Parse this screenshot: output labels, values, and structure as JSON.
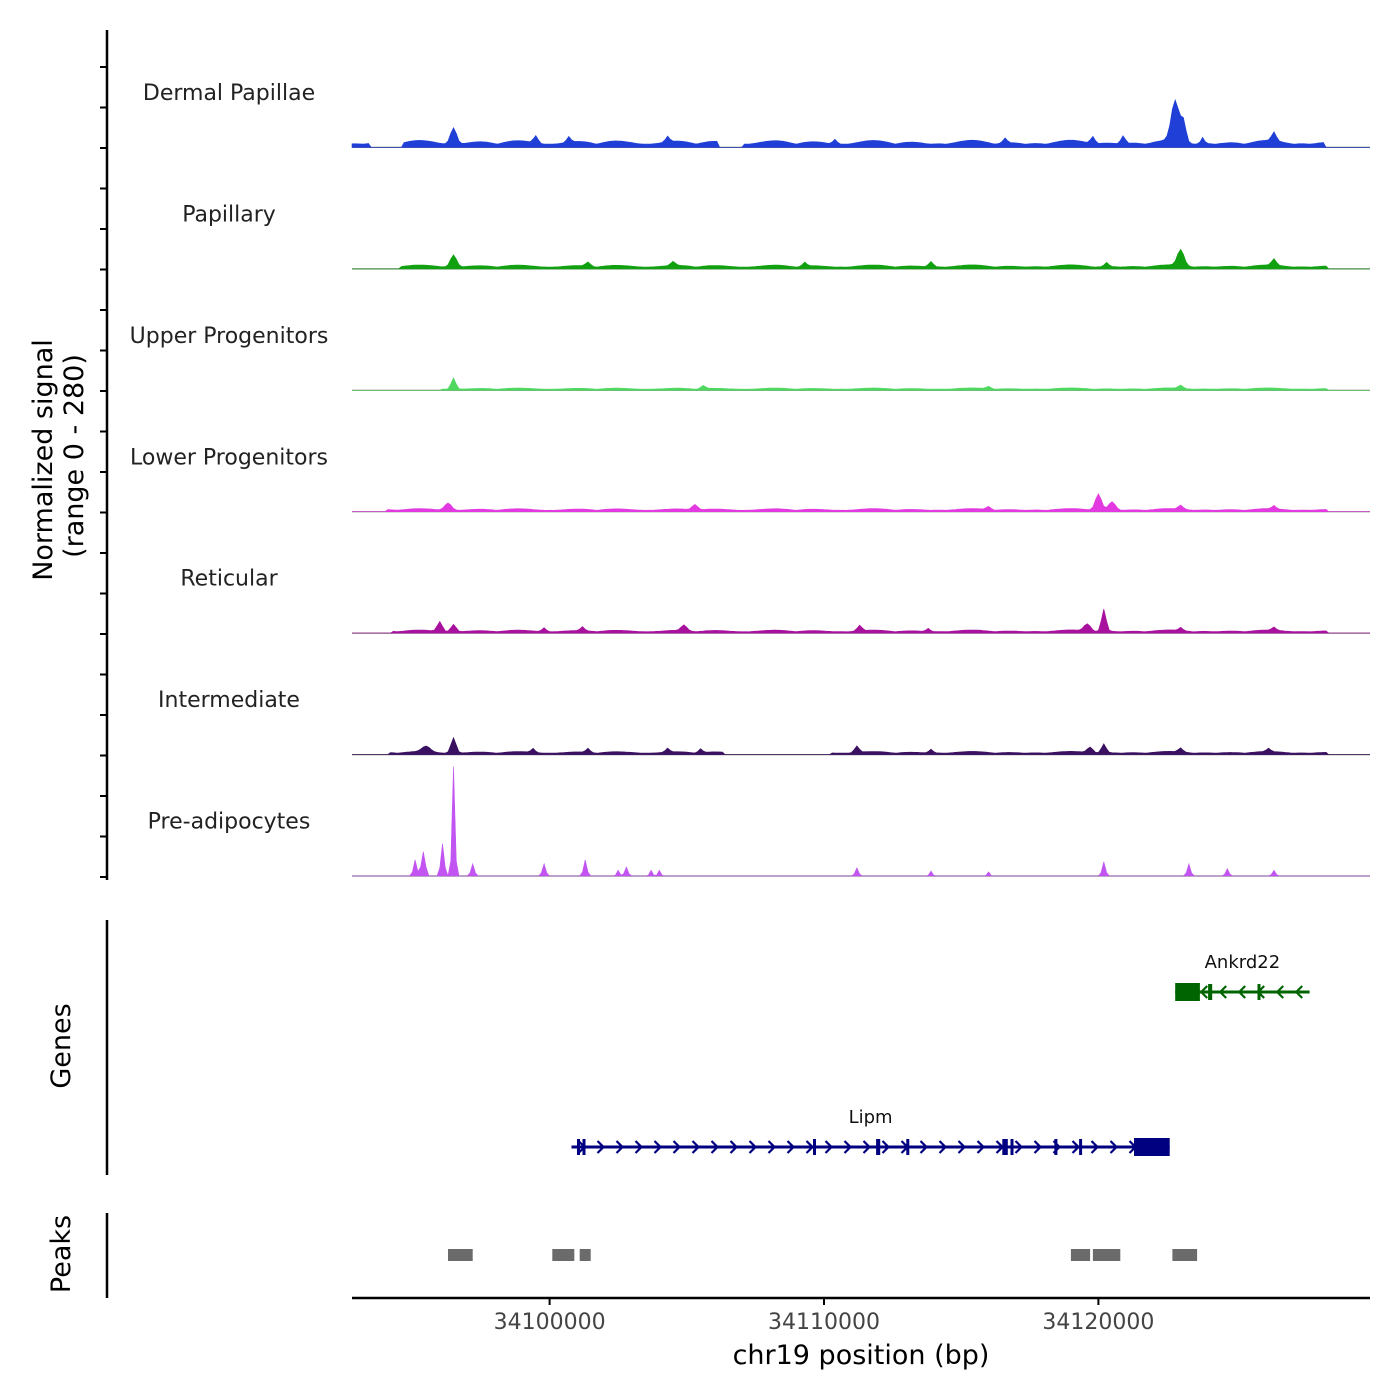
{
  "chart_data": {
    "type": "area",
    "title": "",
    "chromosome": "chr19",
    "xlabel": "chr19 position (bp)",
    "xlim": [
      34092800,
      34129900
    ],
    "x_ticks": [
      {
        "value": 34100000,
        "label": "34100000"
      },
      {
        "value": 34110000,
        "label": "34110000"
      },
      {
        "value": 34120000,
        "label": "34120000"
      }
    ],
    "coverage": {
      "ylabel_line1": "Normalized signal",
      "ylabel_line2": "(range 0 - 280)",
      "ylim": [
        0,
        280
      ],
      "bin_size_bp": 100,
      "tracks": [
        {
          "name": "Dermal Papillae",
          "color": "#1f3fd6",
          "baseline": 18,
          "peaks": [
            [
              34096500,
              40,
              110
            ],
            [
              34099500,
              18,
              80
            ],
            [
              34100700,
              14,
              70
            ],
            [
              34104300,
              14,
              70
            ],
            [
              34110400,
              12,
              70
            ],
            [
              34116600,
              12,
              70
            ],
            [
              34119800,
              18,
              80
            ],
            [
              34120900,
              20,
              80
            ],
            [
              34122800,
              100,
              140
            ],
            [
              34123100,
              50,
              90
            ],
            [
              34123800,
              15,
              60
            ],
            [
              34126400,
              22,
              80
            ]
          ],
          "gaps": [
            [
              34093500,
              34094600
            ],
            [
              34106200,
              34107000
            ],
            [
              34128300,
              34129900
            ]
          ]
        },
        {
          "name": "Papillary",
          "color": "#11a010",
          "baseline": 10,
          "peaks": [
            [
              34096500,
              30,
              110
            ],
            [
              34101400,
              10,
              80
            ],
            [
              34104500,
              10,
              80
            ],
            [
              34109300,
              10,
              70
            ],
            [
              34113900,
              14,
              80
            ],
            [
              34120300,
              10,
              70
            ],
            [
              34123000,
              40,
              120
            ],
            [
              34126400,
              16,
              80
            ]
          ],
          "gaps": [
            [
              34092800,
              34094500
            ],
            [
              34128400,
              34129900
            ]
          ]
        },
        {
          "name": "Upper Progenitors",
          "color": "#4fd860",
          "baseline": 6,
          "peaks": [
            [
              34096500,
              28,
              80
            ],
            [
              34105600,
              8,
              80
            ],
            [
              34116000,
              6,
              80
            ],
            [
              34123000,
              8,
              80
            ]
          ],
          "gaps": [
            [
              34092800,
              34096000
            ],
            [
              34128400,
              34129900
            ]
          ]
        },
        {
          "name": "Lower Progenitors",
          "color": "#e23ae0",
          "baseline": 8,
          "peaks": [
            [
              34096300,
              18,
              120
            ],
            [
              34105300,
              14,
              100
            ],
            [
              34116000,
              8,
              80
            ],
            [
              34120000,
              40,
              110
            ],
            [
              34120500,
              20,
              120
            ],
            [
              34123000,
              10,
              80
            ],
            [
              34126400,
              8,
              70
            ]
          ],
          "gaps": [
            [
              34092800,
              34094000
            ],
            [
              34128400,
              34129900
            ]
          ]
        },
        {
          "name": "Reticular",
          "color": "#a8109e",
          "baseline": 8,
          "peaks": [
            [
              34096000,
              24,
              90
            ],
            [
              34096500,
              18,
              90
            ],
            [
              34099800,
              10,
              70
            ],
            [
              34101200,
              10,
              70
            ],
            [
              34104900,
              14,
              100
            ],
            [
              34111300,
              14,
              80
            ],
            [
              34113800,
              8,
              70
            ],
            [
              34119600,
              18,
              120
            ],
            [
              34120200,
              55,
              80
            ],
            [
              34123000,
              8,
              70
            ],
            [
              34126400,
              8,
              70
            ]
          ],
          "gaps": [
            [
              34092800,
              34094200
            ],
            [
              34128400,
              34129900
            ]
          ]
        },
        {
          "name": "Intermediate",
          "color": "#3a1060",
          "baseline": 8,
          "peaks": [
            [
              34095500,
              14,
              150
            ],
            [
              34096500,
              38,
              90
            ],
            [
              34099400,
              10,
              70
            ],
            [
              34101400,
              10,
              70
            ],
            [
              34104300,
              10,
              70
            ],
            [
              34105500,
              10,
              70
            ],
            [
              34111200,
              16,
              80
            ],
            [
              34113900,
              10,
              70
            ],
            [
              34119700,
              14,
              100
            ],
            [
              34120200,
              22,
              80
            ],
            [
              34123000,
              10,
              80
            ],
            [
              34126200,
              8,
              70
            ]
          ],
          "gaps": [
            [
              34092800,
              34094100
            ],
            [
              34106400,
              34110200
            ],
            [
              34128400,
              34129900
            ]
          ]
        },
        {
          "name": "Pre-adipocytes",
          "color": "#c255f2",
          "baseline": 0,
          "peaks": [
            [
              34095100,
              40,
              60
            ],
            [
              34095400,
              60,
              70
            ],
            [
              34096100,
              80,
              60
            ],
            [
              34096500,
              270,
              50
            ],
            [
              34097200,
              30,
              60
            ],
            [
              34099800,
              30,
              60
            ],
            [
              34101300,
              40,
              60
            ],
            [
              34102500,
              14,
              50
            ],
            [
              34102800,
              22,
              60
            ],
            [
              34103700,
              14,
              50
            ],
            [
              34104000,
              14,
              50
            ],
            [
              34111200,
              20,
              60
            ],
            [
              34113900,
              12,
              50
            ],
            [
              34116000,
              10,
              50
            ],
            [
              34120200,
              35,
              60
            ],
            [
              34123300,
              30,
              60
            ],
            [
              34124700,
              18,
              60
            ],
            [
              34126400,
              14,
              60
            ]
          ],
          "gaps": []
        }
      ]
    },
    "genes": {
      "label": "Genes",
      "items": [
        {
          "name": "Ankrd22",
          "strand": "-",
          "start": 34122800,
          "end": 34127700,
          "color": "#006400",
          "exons": [
            [
              34122800,
              34123700
            ],
            [
              34124000,
              34124150
            ],
            [
              34125800,
              34125900
            ]
          ]
        },
        {
          "name": "Lipm",
          "strand": "+",
          "start": 34100800,
          "end": 34122600,
          "color": "#000080",
          "exons": [
            [
              34101000,
              34101100
            ],
            [
              34101200,
              34101300
            ],
            [
              34109600,
              34109700
            ],
            [
              34111900,
              34112050
            ],
            [
              34113000,
              34113100
            ],
            [
              34116500,
              34116700
            ],
            [
              34116800,
              34116900
            ],
            [
              34118400,
              34118500
            ],
            [
              34119300,
              34119400
            ],
            [
              34121300,
              34122600
            ]
          ]
        }
      ]
    },
    "peaks": {
      "label": "Peaks",
      "color": "#6b6b6b",
      "regions": [
        [
          34096300,
          34097200
        ],
        [
          34100100,
          34100900
        ],
        [
          34101100,
          34101500
        ],
        [
          34119000,
          34119700
        ],
        [
          34119800,
          34120800
        ],
        [
          34122700,
          34123600
        ]
      ]
    }
  }
}
